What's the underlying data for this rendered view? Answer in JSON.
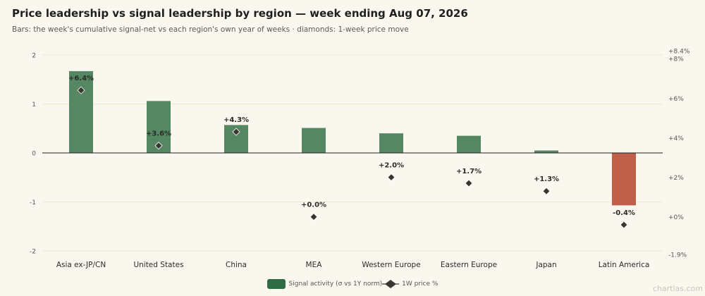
{
  "header": {
    "title": "Price leadership vs signal leadership by region — week ending Aug 07, 2026",
    "subtitle": "Bars: the week's cumulative signal-net vs each region's own year of weeks · diamonds: 1-week price move"
  },
  "legend": {
    "bar_label": "Signal activity (σ vs 1Y norm)",
    "diamond_label": "1W price %"
  },
  "watermark": "chartlas.com",
  "colors": {
    "positive_bar": "#558762",
    "negative_bar": "#c0604a",
    "legend_bar": "#2f6b45",
    "diamond": "#3b3530",
    "zero_line": "#1f1f1f",
    "grid": "#efe9cf",
    "tick_text": "#555555"
  },
  "chart_data": {
    "type": "bar",
    "categories": [
      "Asia ex-JP/CN",
      "United States",
      "China",
      "MEA",
      "Western Europe",
      "Eastern Europe",
      "Japan",
      "Latin America"
    ],
    "series": [
      {
        "name": "Signal activity (σ vs 1Y norm)",
        "type": "bar",
        "axis": "left",
        "values": [
          1.67,
          1.06,
          0.57,
          0.51,
          0.4,
          0.35,
          0.05,
          -1.07
        ]
      },
      {
        "name": "1W price %",
        "type": "scatter",
        "marker": "diamond",
        "axis": "right",
        "values": [
          6.4,
          3.6,
          4.3,
          0.0,
          2.0,
          1.7,
          1.3,
          -0.4
        ],
        "labels": [
          "+6.4%",
          "+3.6%",
          "+4.3%",
          "+0.0%",
          "+2.0%",
          "+1.7%",
          "+1.3%",
          "-0.4%"
        ]
      }
    ],
    "left_axis": {
      "ylim": [
        -2.1,
        2.1
      ],
      "ticks": [
        2,
        1,
        0,
        -1,
        -2
      ],
      "tick_labels": [
        "2",
        "1",
        "0",
        "-1",
        "-2"
      ]
    },
    "right_axis": {
      "ylim": [
        -1.9,
        8.4
      ],
      "ticks": [
        8.4,
        8,
        6,
        4,
        2,
        0,
        -1.9
      ],
      "tick_labels": [
        "+8.4%",
        "+8%",
        "+6%",
        "+4%",
        "+2%",
        "+0%",
        "-1.9%"
      ]
    },
    "grid": true,
    "legend_position": "bottom-center"
  }
}
